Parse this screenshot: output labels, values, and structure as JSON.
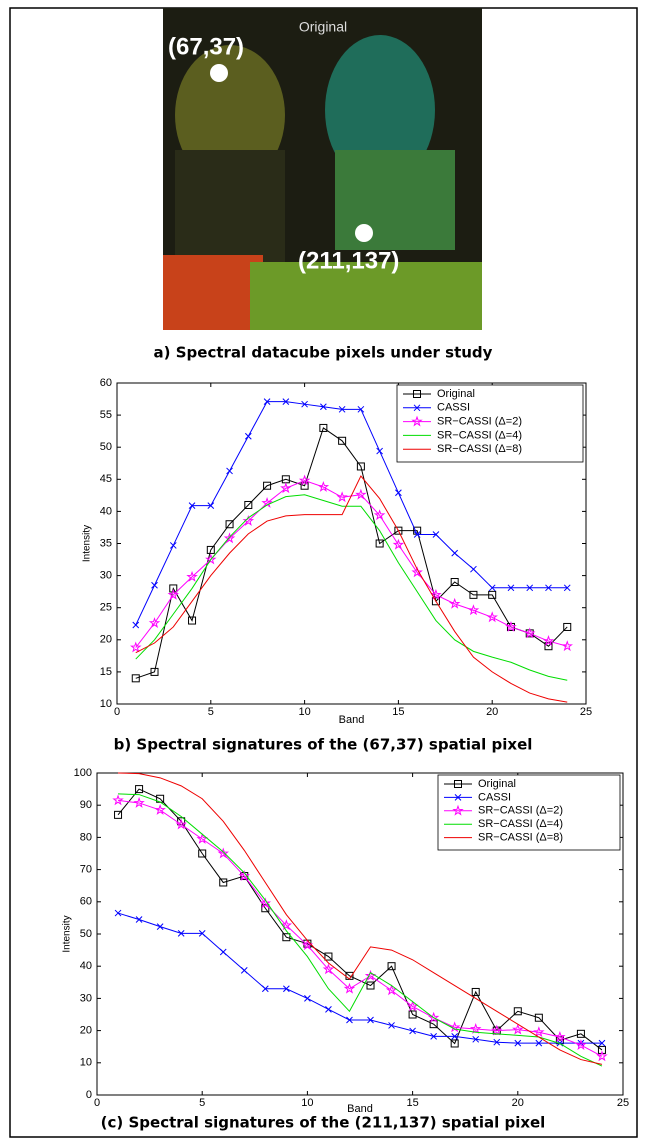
{
  "figure_a": {
    "title": "Original",
    "labels": [
      "(67,37)",
      "(211,137)"
    ],
    "caption": "a) Spectral datacube pixels under study"
  },
  "chart_data": [
    {
      "type": "line",
      "caption": "b) Spectral signatures of the (67,37) spatial pixel",
      "x_label": "Band",
      "y_label": "Intensity",
      "x": [
        1,
        2,
        3,
        4,
        5,
        6,
        7,
        8,
        9,
        10,
        11,
        12,
        13,
        14,
        15,
        16,
        17,
        18,
        19,
        20,
        21,
        22,
        23,
        24
      ],
      "xlim": [
        0,
        25
      ],
      "xticks": [
        0,
        5,
        10,
        15,
        20,
        25
      ],
      "ylim": [
        10,
        60
      ],
      "yticks": [
        10,
        15,
        20,
        25,
        30,
        35,
        40,
        45,
        50,
        55,
        60
      ],
      "legend": "upper right",
      "series": [
        {
          "name": "Original",
          "color": "#000000",
          "marker": "square",
          "values": [
            14,
            15,
            28,
            23,
            34,
            38,
            41,
            44,
            45,
            44,
            53,
            51,
            47,
            35,
            37,
            37,
            26,
            29,
            27,
            27,
            22,
            21,
            19,
            22
          ]
        },
        {
          "name": "CASSI",
          "color": "#0000ff",
          "marker": "x",
          "values": [
            22.3,
            28.5,
            34.7,
            40.9,
            40.9,
            46.3,
            51.7,
            57.1,
            57.1,
            56.7,
            56.3,
            55.9,
            55.9,
            49.4,
            42.9,
            36.4,
            36.4,
            33.5,
            31,
            28.1,
            28.1,
            28.1,
            28.1,
            28.1
          ]
        },
        {
          "name": "SR−CASSI (Δ=2)",
          "color": "#ff00ff",
          "marker": "star",
          "values": [
            18.8,
            22.6,
            27,
            29.8,
            32.5,
            35.8,
            38.5,
            41.3,
            43.6,
            44.8,
            43.8,
            42.2,
            42.6,
            39.4,
            34.8,
            30.5,
            27,
            25.6,
            24.6,
            23.5,
            22,
            21,
            19.8,
            19
          ]
        },
        {
          "name": "SR−CASSI (Δ=4)",
          "color": "#00dd00",
          "values": [
            17,
            20,
            24,
            28,
            32.5,
            36,
            39,
            41,
            42.3,
            42.6,
            41.7,
            40.8,
            40.8,
            37,
            32,
            27.5,
            23,
            20,
            18.2,
            17.3,
            16.5,
            15.3,
            14.3,
            13.7
          ]
        },
        {
          "name": "SR−CASSI (Δ=8)",
          "color": "#ee0000",
          "values": [
            18,
            19.5,
            22,
            26,
            30,
            33.5,
            36.5,
            38.5,
            39.3,
            39.5,
            39.5,
            39.5,
            45.5,
            42,
            37,
            31,
            26,
            21.3,
            17.3,
            15,
            13.2,
            11.7,
            10.8,
            10.3
          ]
        }
      ]
    },
    {
      "type": "line",
      "caption": "(c) Spectral signatures of the (211,137) spatial pixel",
      "x_label": "Band",
      "y_label": "Intensity",
      "x": [
        1,
        2,
        3,
        4,
        5,
        6,
        7,
        8,
        9,
        10,
        11,
        12,
        13,
        14,
        15,
        16,
        17,
        18,
        19,
        20,
        21,
        22,
        23,
        24
      ],
      "xlim": [
        0,
        25
      ],
      "xticks": [
        0,
        5,
        10,
        15,
        20,
        25
      ],
      "ylim": [
        0,
        100
      ],
      "yticks": [
        0,
        10,
        20,
        30,
        40,
        50,
        60,
        70,
        80,
        90,
        100
      ],
      "legend": "upper right",
      "series": [
        {
          "name": "Original",
          "color": "#000000",
          "marker": "square",
          "values": [
            87,
            95,
            92,
            85,
            75,
            66,
            68,
            58,
            49,
            47,
            43,
            37,
            34,
            40,
            25,
            22,
            16,
            32,
            20,
            26,
            24,
            17,
            19,
            14
          ]
        },
        {
          "name": "CASSI",
          "color": "#0000ff",
          "marker": "x",
          "values": [
            56.5,
            54.5,
            52.3,
            50.2,
            50.2,
            44.4,
            38.7,
            33,
            33,
            30,
            26.6,
            23.3,
            23.3,
            21.6,
            19.9,
            18.2,
            18.2,
            17.3,
            16.4,
            16.1,
            16.1,
            16.1,
            16.1,
            16.1
          ]
        },
        {
          "name": "SR−CASSI (Δ=2)",
          "color": "#ff00ff",
          "marker": "star",
          "values": [
            91.5,
            90.7,
            88.5,
            84,
            79.5,
            75,
            68,
            59.5,
            52.7,
            46.5,
            39,
            33,
            37,
            32.5,
            27.5,
            24,
            21,
            20.5,
            20,
            20.3,
            19.5,
            18,
            15.5,
            12
          ]
        },
        {
          "name": "SR−CASSI (Δ=4)",
          "color": "#00dd00",
          "values": [
            93.5,
            93.3,
            91,
            86.5,
            81,
            75.5,
            69,
            60.5,
            51,
            43,
            33,
            26,
            38,
            34,
            29,
            24,
            20.5,
            19.5,
            19,
            18.5,
            18,
            16,
            12,
            9
          ]
        },
        {
          "name": "SR−CASSI (Δ=8)",
          "color": "#ee0000",
          "values": [
            100,
            99.8,
            98.5,
            96,
            92,
            85,
            76,
            66,
            56,
            48,
            41,
            36,
            46,
            45,
            42,
            38,
            34,
            30,
            26,
            22,
            18,
            14,
            11,
            9.5
          ]
        }
      ]
    }
  ]
}
